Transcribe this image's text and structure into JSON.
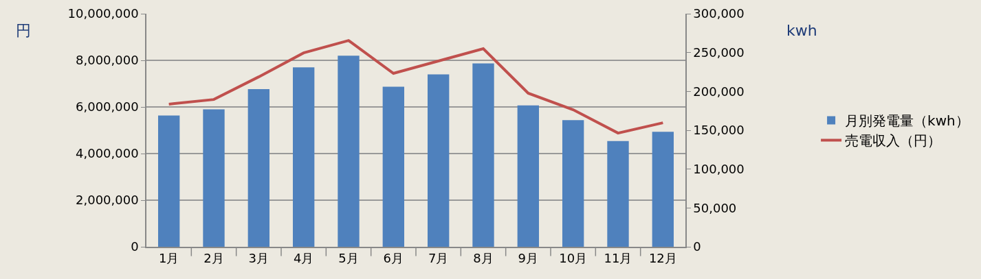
{
  "chart_data": {
    "type": "bar",
    "ylabel": "円",
    "y2label": "kwh",
    "categories": [
      "1月",
      "2月",
      "3月",
      "4月",
      "5月",
      "6月",
      "7月",
      "8月",
      "9月",
      "10月",
      "11月",
      "12月"
    ],
    "series": [
      {
        "name": "月別発電量（kwh）",
        "axis": "y2",
        "color": "#4f81bd",
        "values": [
          169000,
          177000,
          203000,
          231000,
          246000,
          206000,
          222000,
          236000,
          182000,
          163000,
          136000,
          148000
        ]
      },
      {
        "name": "売電収入（円）",
        "type": "line",
        "axis": "y",
        "color": "#c0504d",
        "values": [
          6120000,
          6320000,
          7290000,
          8320000,
          8850000,
          7440000,
          7970000,
          8500000,
          6590000,
          5880000,
          4880000,
          5320000
        ]
      }
    ],
    "ylim": [
      0,
      10000000
    ],
    "yticks": [
      {
        "value": 0,
        "label": "0"
      },
      {
        "value": 2000000,
        "label": "2,000,000"
      },
      {
        "value": 4000000,
        "label": "4,000,000"
      },
      {
        "value": 6000000,
        "label": "6,000,000"
      },
      {
        "value": 8000000,
        "label": "8,000,000"
      },
      {
        "value": 10000000,
        "label": "10,000,000"
      }
    ],
    "y2lim": [
      0,
      300000
    ],
    "y2ticks": [
      {
        "value": 0,
        "label": "0"
      },
      {
        "value": 50000,
        "label": "50,000"
      },
      {
        "value": 100000,
        "label": "100,000"
      },
      {
        "value": 150000,
        "label": "150,000"
      },
      {
        "value": 200000,
        "label": "200,000"
      },
      {
        "value": 250000,
        "label": "250,000"
      },
      {
        "value": 300000,
        "label": "300,000"
      }
    ],
    "grid": "y",
    "legend": "right",
    "marker": "none",
    "line_style": "solid"
  }
}
